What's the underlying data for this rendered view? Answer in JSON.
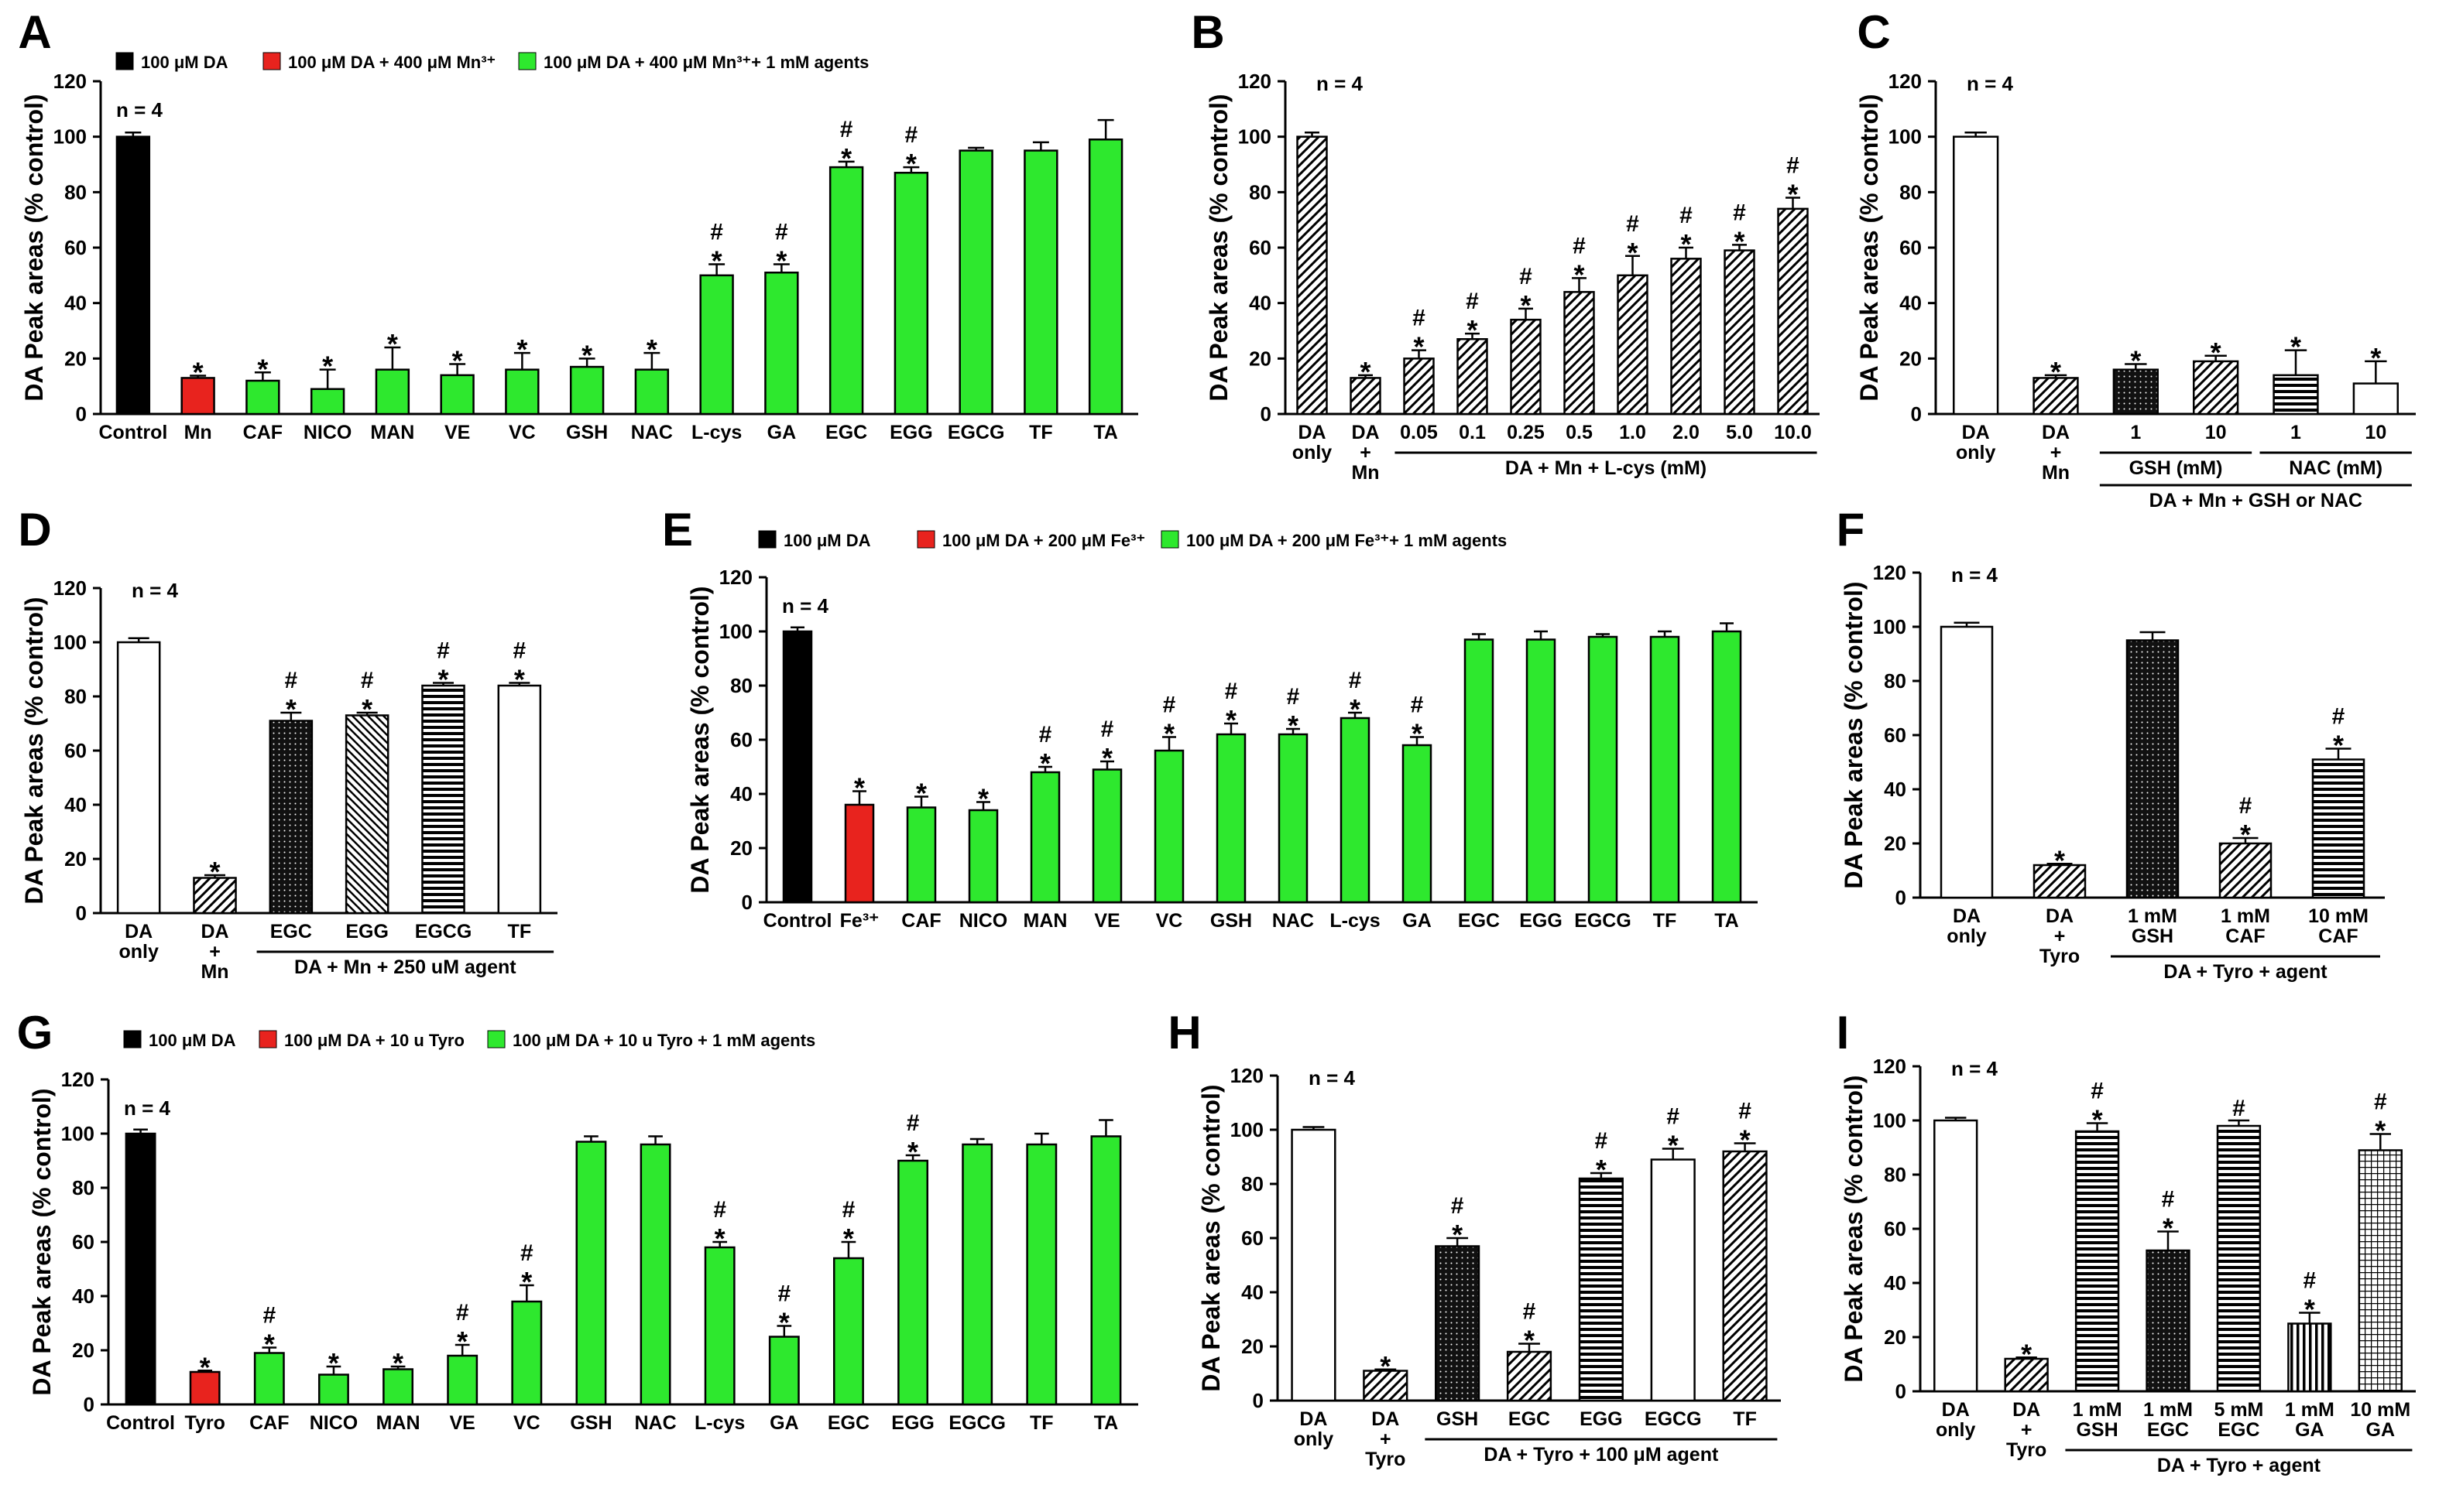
{
  "chart_data": [
    {
      "panel": "A",
      "type": "bar",
      "ylabel": "DA Peak areas (% control)",
      "ylim": [
        0,
        120
      ],
      "yticks": [
        0,
        20,
        40,
        60,
        80,
        100,
        120
      ],
      "n_label": "n = 4",
      "legend": [
        {
          "label": "100 μM DA",
          "color": "#000000"
        },
        {
          "label": "100 μM DA + 400 μM Mn³⁺",
          "color": "#e8231e"
        },
        {
          "label": "100 μM DA + 400 μM Mn³⁺+ 1 mM agents",
          "color": "#2ee82e"
        }
      ],
      "categories": [
        "Control",
        "Mn",
        "CAF",
        "NICO",
        "MAN",
        "VE",
        "VC",
        "GSH",
        "NAC",
        "L-cys",
        "GA",
        "EGC",
        "EGG",
        "EGCG",
        "TF",
        "TA"
      ],
      "values": [
        100,
        13,
        12,
        9,
        16,
        14,
        16,
        17,
        16,
        50,
        51,
        89,
        87,
        95,
        95,
        99
      ],
      "errors": [
        1.5,
        0.8,
        3,
        7,
        8,
        4,
        6,
        3,
        6,
        4,
        3,
        2,
        2,
        1,
        3,
        7
      ],
      "marks": [
        "",
        "*",
        "*",
        "*",
        "*",
        "*",
        "*",
        "*",
        "*",
        "#*",
        "#*",
        "#*",
        "#*",
        "",
        "",
        ""
      ],
      "fills": [
        "black",
        "red",
        "green",
        "green",
        "green",
        "green",
        "green",
        "green",
        "green",
        "green",
        "green",
        "green",
        "green",
        "green",
        "green",
        "green"
      ]
    },
    {
      "panel": "B",
      "type": "bar",
      "ylabel": "DA Peak areas (% control)",
      "ylim": [
        0,
        120
      ],
      "yticks": [
        0,
        20,
        40,
        60,
        80,
        100,
        120
      ],
      "n_label": "n = 4",
      "categories": [
        "DA\nonly",
        "DA\n+\nMn",
        "0.05",
        "0.1",
        "0.25",
        "0.5",
        "1.0",
        "2.0",
        "5.0",
        "10.0"
      ],
      "values": [
        100,
        13,
        20,
        27,
        34,
        44,
        50,
        56,
        59,
        74
      ],
      "errors": [
        1.5,
        1,
        3,
        2,
        4,
        5,
        7,
        4,
        2,
        4
      ],
      "marks": [
        "",
        "*",
        "#*",
        "#*",
        "#*",
        "#*",
        "#*",
        "#*",
        "#*",
        "#*"
      ],
      "fills": [
        "hatch",
        "hatch",
        "hatch",
        "hatch",
        "hatch",
        "hatch",
        "hatch",
        "hatch",
        "hatch",
        "hatch"
      ],
      "groups": [
        {
          "label": "DA + Mn + L-cys (mM)",
          "from": 2,
          "to": 9
        }
      ]
    },
    {
      "panel": "C",
      "type": "bar",
      "ylabel": "DA Peak areas (% control)",
      "ylim": [
        0,
        120
      ],
      "yticks": [
        0,
        20,
        40,
        60,
        80,
        100,
        120
      ],
      "n_label": "n = 4",
      "categories": [
        "DA\nonly",
        "DA\n+\nMn",
        "1",
        "10",
        "1",
        "10"
      ],
      "values": [
        100,
        13,
        16,
        19,
        14,
        11
      ],
      "errors": [
        1.5,
        1,
        2,
        2,
        9,
        8
      ],
      "marks": [
        "",
        "*",
        "*",
        "*",
        "*",
        "*"
      ],
      "fills": [
        "white",
        "hatch",
        "dots",
        "hatch",
        "hstripe",
        "white"
      ],
      "groups": [
        {
          "label": "GSH (mM)",
          "from": 2,
          "to": 3
        },
        {
          "label": "NAC (mM)",
          "from": 4,
          "to": 5
        }
      ],
      "outer_group": {
        "label": "DA + Mn + GSH or NAC",
        "from": 2,
        "to": 5
      }
    },
    {
      "panel": "D",
      "type": "bar",
      "ylabel": "DA Peak areas (% control)",
      "ylim": [
        0,
        120
      ],
      "yticks": [
        0,
        20,
        40,
        60,
        80,
        100,
        120
      ],
      "n_label": "n = 4",
      "categories": [
        "DA\nonly",
        "DA\n+\nMn",
        "EGC",
        "EGG",
        "EGCG",
        "TF"
      ],
      "values": [
        100,
        13,
        71,
        73,
        84,
        84
      ],
      "errors": [
        1.5,
        1,
        3,
        1,
        1,
        1
      ],
      "marks": [
        "",
        "*",
        "#*",
        "#*",
        "#*",
        "#*"
      ],
      "fills": [
        "white",
        "hatch",
        "dots",
        "dhatch",
        "hstripe",
        "white"
      ],
      "groups": [
        {
          "label": "DA + Mn + 250 uM agent",
          "from": 2,
          "to": 5
        }
      ]
    },
    {
      "panel": "E",
      "type": "bar",
      "ylabel": "DA Peak areas (% control)",
      "ylim": [
        0,
        120
      ],
      "yticks": [
        0,
        20,
        40,
        60,
        80,
        100,
        120
      ],
      "n_label": "n = 4",
      "legend": [
        {
          "label": "100 μM DA",
          "color": "#000000"
        },
        {
          "label": "100 μM DA + 200 μM Fe³⁺",
          "color": "#e8231e"
        },
        {
          "label": "100 μM DA + 200 μM Fe³⁺+ 1 mM agents",
          "color": "#2ee82e"
        }
      ],
      "categories": [
        "Control",
        "Fe³⁺",
        "CAF",
        "NICO",
        "MAN",
        "VE",
        "VC",
        "GSH",
        "NAC",
        "L-cys",
        "GA",
        "EGC",
        "EGG",
        "EGCG",
        "TF",
        "TA"
      ],
      "values": [
        100,
        36,
        35,
        34,
        48,
        49,
        56,
        62,
        62,
        68,
        58,
        97,
        97,
        98,
        98,
        100
      ],
      "errors": [
        1.5,
        5,
        4,
        3,
        2,
        3,
        5,
        4,
        2,
        2,
        3,
        2,
        3,
        1,
        2,
        3
      ],
      "marks": [
        "",
        "*",
        "*",
        "*",
        "#*",
        "#*",
        "#*",
        "#*",
        "#*",
        "#*",
        "#*",
        "",
        "",
        "",
        "",
        ""
      ],
      "fills": [
        "black",
        "red",
        "green",
        "green",
        "green",
        "green",
        "green",
        "green",
        "green",
        "green",
        "green",
        "green",
        "green",
        "green",
        "green",
        "green"
      ]
    },
    {
      "panel": "F",
      "type": "bar",
      "ylabel": "DA Peak areas (% control)",
      "ylim": [
        0,
        120
      ],
      "yticks": [
        0,
        20,
        40,
        60,
        80,
        100,
        120
      ],
      "n_label": "n = 4",
      "categories": [
        "DA\nonly",
        "DA\n+\nTyro",
        "1 mM\nGSH",
        "1 mM\nCAF",
        "10 mM\nCAF"
      ],
      "values": [
        100,
        12,
        95,
        20,
        51
      ],
      "errors": [
        1.5,
        0.5,
        3,
        2,
        4
      ],
      "marks": [
        "",
        "*",
        "",
        "#*",
        "#*"
      ],
      "fills": [
        "white",
        "hatch",
        "dots",
        "hatch",
        "hstripe"
      ],
      "groups": [
        {
          "label": "DA + Tyro + agent",
          "from": 2,
          "to": 4
        }
      ]
    },
    {
      "panel": "G",
      "type": "bar",
      "ylabel": "DA Peak areas (% control)",
      "ylim": [
        0,
        120
      ],
      "yticks": [
        0,
        20,
        40,
        60,
        80,
        100,
        120
      ],
      "n_label": "n = 4",
      "legend": [
        {
          "label": "100 μM DA",
          "color": "#000000"
        },
        {
          "label": "100 μM DA + 10 u Tyro",
          "color": "#e8231e"
        },
        {
          "label": "100 μM DA + 10 u Tyro + 1 mM agents",
          "color": "#2ee82e"
        }
      ],
      "categories": [
        "Control",
        "Tyro",
        "CAF",
        "NICO",
        "MAN",
        "VE",
        "VC",
        "GSH",
        "NAC",
        "L-cys",
        "GA",
        "EGC",
        "EGG",
        "EGCG",
        "TF",
        "TA"
      ],
      "values": [
        100,
        12,
        19,
        11,
        13,
        18,
        38,
        97,
        96,
        58,
        25,
        54,
        90,
        96,
        96,
        99
      ],
      "errors": [
        1.5,
        0.5,
        2,
        3,
        1,
        4,
        6,
        2,
        3,
        2,
        4,
        6,
        2,
        2,
        4,
        6
      ],
      "marks": [
        "",
        "*",
        "#*",
        "*",
        "*",
        "#*",
        "#*",
        "",
        "",
        "#*",
        "#*",
        "#*",
        "#*",
        "",
        "",
        ""
      ],
      "fills": [
        "black",
        "red",
        "green",
        "green",
        "green",
        "green",
        "green",
        "green",
        "green",
        "green",
        "green",
        "green",
        "green",
        "green",
        "green",
        "green"
      ]
    },
    {
      "panel": "H",
      "type": "bar",
      "ylabel": "DA Peak areas (% control)",
      "ylim": [
        0,
        120
      ],
      "yticks": [
        0,
        20,
        40,
        60,
        80,
        100,
        120
      ],
      "n_label": "n = 4",
      "categories": [
        "DA\nonly",
        "DA\n+\nTyro",
        "GSH",
        "EGC",
        "EGG",
        "EGCG",
        "TF"
      ],
      "values": [
        100,
        11,
        57,
        18,
        82,
        89,
        92
      ],
      "errors": [
        1,
        0.5,
        3,
        3,
        2,
        4,
        3
      ],
      "marks": [
        "",
        "*",
        "#*",
        "#*",
        "#*",
        "#*",
        "#*"
      ],
      "fills": [
        "white",
        "hatch",
        "dots",
        "hatch",
        "hstripe",
        "white",
        "hatch"
      ],
      "groups": [
        {
          "label": "DA + Tyro + 100 μM agent",
          "from": 2,
          "to": 6
        }
      ]
    },
    {
      "panel": "I",
      "type": "bar",
      "ylabel": "DA Peak areas (% control)",
      "ylim": [
        0,
        120
      ],
      "yticks": [
        0,
        20,
        40,
        60,
        80,
        100,
        120
      ],
      "n_label": "n = 4",
      "categories": [
        "DA\nonly",
        "DA\n+\nTyro",
        "1 mM\nGSH",
        "1 mM\nEGC",
        "5 mM\nEGC",
        "1 mM\nGA",
        "10 mM\nGA"
      ],
      "values": [
        100,
        12,
        96,
        52,
        98,
        25,
        89
      ],
      "errors": [
        1,
        0.5,
        3,
        7,
        2,
        4,
        6
      ],
      "marks": [
        "",
        "*",
        "#*",
        "#*",
        "#",
        "#*",
        "#*"
      ],
      "fills": [
        "white",
        "hatch",
        "hstripe",
        "dots",
        "hstripe",
        "vstripe",
        "grid"
      ],
      "groups": [
        {
          "label": "DA + Tyro + agent",
          "from": 2,
          "to": 6
        }
      ]
    }
  ]
}
